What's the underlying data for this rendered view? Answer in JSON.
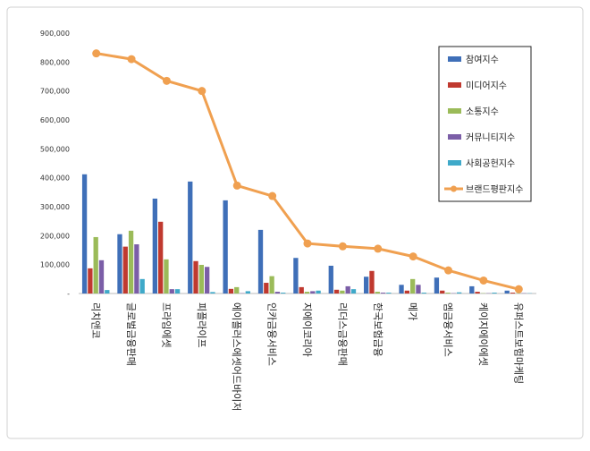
{
  "chart_data": {
    "type": "bar",
    "categories": [
      "리치앤코",
      "글로벌금융판매",
      "프라임에셋",
      "피플라이프",
      "에이플러스에셋어드바이저",
      "인카금융서비스",
      "지에이코리아",
      "리더스금융판매",
      "한국보험금융",
      "메가",
      "엠금융서비스",
      "케이지에이에셋",
      "유퍼스트보험마케팅"
    ],
    "series": [
      {
        "name": "참여지수",
        "color": "#3f6fb8",
        "values": [
          412000,
          205000,
          328000,
          387000,
          322000,
          220000,
          123000,
          96000,
          58000,
          30000,
          55000,
          25000,
          10000
        ]
      },
      {
        "name": "미디어지수",
        "color": "#c0392f",
        "values": [
          87000,
          162000,
          248000,
          112000,
          16000,
          37000,
          22000,
          13000,
          78000,
          10000,
          10000,
          6000,
          3000
        ]
      },
      {
        "name": "소통지수",
        "color": "#9bbb59",
        "values": [
          195000,
          217000,
          118000,
          99000,
          22000,
          60000,
          6000,
          10000,
          6000,
          50000,
          3000,
          1000,
          1000
        ]
      },
      {
        "name": "커뮤니티지수",
        "color": "#7b5ea7",
        "values": [
          115000,
          170000,
          15000,
          92000,
          1000,
          6000,
          8000,
          25000,
          3000,
          30000,
          1000,
          1000,
          1000
        ]
      },
      {
        "name": "사회공헌지수",
        "color": "#3fa9c9",
        "values": [
          12000,
          50000,
          15000,
          5000,
          8000,
          3000,
          10000,
          15000,
          3000,
          3000,
          4000,
          3000,
          1000
        ]
      },
      {
        "name": "브랜드평판지수",
        "color": "#f0a050",
        "type": "line",
        "values": [
          830000,
          810000,
          735000,
          700000,
          373000,
          337000,
          173000,
          163000,
          155000,
          128000,
          80000,
          45000,
          15000
        ]
      }
    ],
    "ylim": [
      0,
      900000
    ],
    "yticks": [
      {
        "value": 0,
        "label": "-"
      },
      {
        "value": 100000,
        "label": "100,000"
      },
      {
        "value": 200000,
        "label": "200,000"
      },
      {
        "value": 300000,
        "label": "300,000"
      },
      {
        "value": 400000,
        "label": "400,000"
      },
      {
        "value": 500000,
        "label": "500,000"
      },
      {
        "value": 600000,
        "label": "600,000"
      },
      {
        "value": 700000,
        "label": "700,000"
      },
      {
        "value": 800000,
        "label": "800,000"
      },
      {
        "value": 900000,
        "label": "900,000"
      }
    ],
    "grid": false
  }
}
